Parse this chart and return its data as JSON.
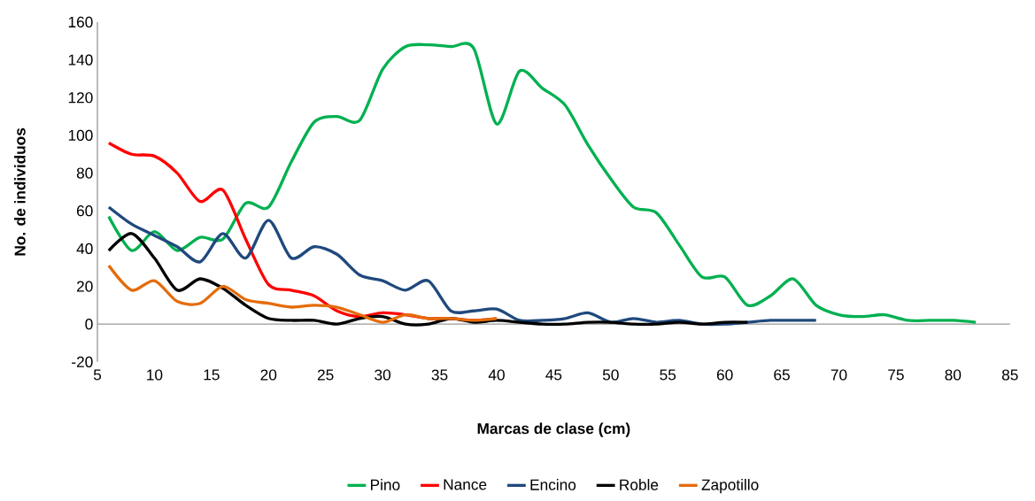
{
  "chart_data": {
    "type": "line",
    "xlabel": "Marcas de clase (cm)",
    "ylabel": "No. de individuos",
    "xlim": [
      5,
      85
    ],
    "xticks": [
      5,
      10,
      15,
      20,
      25,
      30,
      35,
      40,
      45,
      50,
      55,
      60,
      65,
      70,
      75,
      80,
      85
    ],
    "ylim": [
      -20,
      160
    ],
    "yticks": [
      -20,
      0,
      20,
      40,
      60,
      80,
      100,
      120,
      140,
      160
    ],
    "legend": "bottom",
    "marker": "none",
    "line_style": "solid",
    "series": [
      {
        "name": "Pino",
        "color": "#00b050",
        "x": [
          6,
          8,
          10,
          12,
          14,
          16,
          18,
          20,
          22,
          24,
          26,
          28,
          30,
          32,
          34,
          36,
          38,
          40,
          42,
          44,
          46,
          48,
          50,
          52,
          54,
          56,
          58,
          60,
          62,
          64,
          66,
          68,
          70,
          72,
          74,
          76,
          78,
          80,
          82
        ],
        "values": [
          57,
          39,
          49,
          39,
          46,
          45,
          64,
          62,
          86,
          107,
          110,
          108,
          135,
          147,
          148,
          147,
          146,
          106,
          134,
          125,
          116,
          95,
          77,
          62,
          59,
          42,
          25,
          25,
          10,
          15,
          24,
          10,
          5,
          4,
          5,
          2,
          2,
          2,
          1
        ]
      },
      {
        "name": "Nance",
        "color": "#ff0000",
        "x": [
          6,
          8,
          10,
          12,
          14,
          16,
          18,
          20,
          22,
          24,
          26,
          28,
          30,
          32,
          34,
          36,
          38,
          40
        ],
        "values": [
          96,
          90,
          89,
          80,
          65,
          71,
          45,
          21,
          18,
          15,
          7,
          4,
          6,
          5,
          3,
          3,
          2,
          3
        ]
      },
      {
        "name": "Encino",
        "color": "#1f497d",
        "x": [
          6,
          8,
          10,
          12,
          14,
          16,
          18,
          20,
          22,
          24,
          26,
          28,
          30,
          32,
          34,
          36,
          38,
          40,
          42,
          44,
          46,
          48,
          50,
          52,
          54,
          56,
          58,
          60,
          62,
          64,
          66,
          68
        ],
        "values": [
          62,
          53,
          47,
          41,
          33,
          48,
          35,
          55,
          35,
          41,
          37,
          26,
          23,
          18,
          23,
          7,
          7,
          8,
          2,
          2,
          3,
          6,
          1,
          3,
          1,
          2,
          0,
          0,
          1,
          2,
          2,
          2
        ]
      },
      {
        "name": "Roble",
        "color": "#000000",
        "x": [
          6,
          8,
          10,
          12,
          14,
          16,
          18,
          20,
          22,
          24,
          26,
          28,
          30,
          32,
          34,
          36,
          38,
          40,
          42,
          44,
          46,
          48,
          50,
          52,
          54,
          56,
          58,
          60,
          62
        ],
        "values": [
          39,
          48,
          35,
          18,
          24,
          19,
          10,
          3,
          2,
          2,
          0,
          3,
          4,
          0,
          0,
          3,
          1,
          2,
          1,
          0,
          0,
          1,
          1,
          0,
          0,
          1,
          0,
          1,
          1
        ]
      },
      {
        "name": "Zapotillo",
        "color": "#e46c0a",
        "x": [
          6,
          8,
          10,
          12,
          14,
          16,
          18,
          20,
          22,
          24,
          26,
          28,
          30,
          32,
          34,
          36,
          38,
          40
        ],
        "values": [
          31,
          18,
          23,
          12,
          11,
          20,
          13,
          11,
          9,
          10,
          9,
          5,
          1,
          5,
          3,
          3,
          2,
          3
        ]
      }
    ]
  }
}
